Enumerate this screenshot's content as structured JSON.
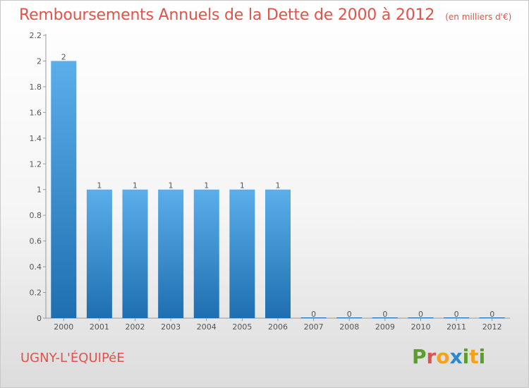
{
  "header": {
    "title": "Remboursements Annuels de la Dette de 2000 à 2012",
    "subtitle": "(en milliers d'€)"
  },
  "footer": {
    "commune": "UGNY-L'ÉQUIPéE",
    "logo_letters": [
      "P",
      "r",
      "o",
      "x",
      "i",
      "t",
      "i"
    ]
  },
  "colors": {
    "title": "#e0534a",
    "bar_top": "#5aaeea",
    "bar_bottom": "#1f6fb0",
    "logo": [
      "#5b9e2d",
      "#e0534a",
      "#f2a31b",
      "#2a87d0",
      "#5b9e2d",
      "#f2a31b",
      "#5b9e2d"
    ]
  },
  "chart_data": {
    "type": "bar",
    "title": "Remboursements Annuels de la Dette de 2000 à 2012",
    "subtitle": "(en milliers d'€)",
    "categories": [
      "2000",
      "2001",
      "2002",
      "2003",
      "2004",
      "2005",
      "2006",
      "2007",
      "2008",
      "2009",
      "2010",
      "2011",
      "2012"
    ],
    "values": [
      2,
      1,
      1,
      1,
      1,
      1,
      1,
      0,
      0,
      0,
      0,
      0,
      0
    ],
    "value_labels": [
      "2",
      "1",
      "1",
      "1",
      "1",
      "1",
      "1",
      "0",
      "0",
      "0",
      "0",
      "0",
      "0"
    ],
    "y_ticks": [
      0,
      0.2,
      0.4,
      0.6,
      0.8,
      1,
      1.2,
      1.4,
      1.6,
      1.8,
      2,
      2.2
    ],
    "y_tick_labels": [
      "0",
      "0.2",
      "0.4",
      "0.6",
      "0.8",
      "1",
      "1.2",
      "1.4",
      "1.6",
      "1.8",
      "2",
      "2.2"
    ],
    "ylim": [
      0,
      2.2
    ],
    "grid": false,
    "legend": "none"
  }
}
